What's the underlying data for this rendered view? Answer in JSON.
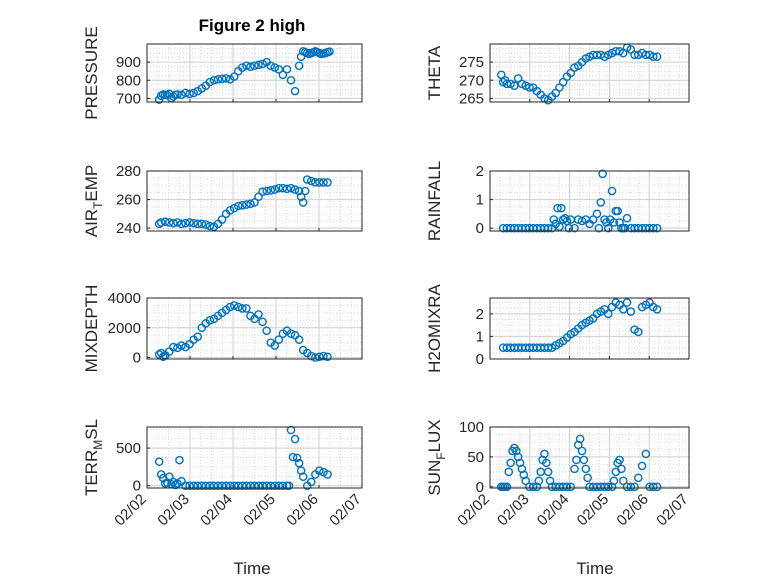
{
  "figure": {
    "title": "Figure 2 high",
    "xlabel": "Time",
    "marker_color": "#0072BD",
    "grid_color": "#d9d9d9",
    "axis_color": "#262626"
  },
  "chart_data": [
    {
      "type": "scatter",
      "id": "pressure",
      "ylabel": "PRESSURE",
      "ylim": [
        680,
        1000
      ],
      "yticks": [
        700,
        800,
        900
      ],
      "ytick_labels": [
        "700",
        "800",
        "900"
      ],
      "xlim": [
        0,
        5
      ],
      "xticks": [
        0,
        1,
        2,
        3,
        4,
        5
      ],
      "xtick_labels": [
        "02/02",
        "02/03",
        "02/04",
        "02/05",
        "02/06",
        "02/07"
      ],
      "show_xtick_labels": false,
      "x": [
        0.05,
        0.1,
        0.15,
        0.2,
        0.25,
        0.3,
        0.35,
        0.4,
        0.45,
        0.5,
        0.6,
        0.7,
        0.8,
        0.9,
        1.0,
        1.1,
        1.2,
        1.3,
        1.4,
        1.5,
        1.6,
        1.7,
        1.8,
        1.9,
        2.0,
        2.1,
        2.2,
        2.3,
        2.4,
        2.5,
        2.6,
        2.7,
        2.8,
        2.9,
        3.0,
        3.1,
        3.2,
        3.3,
        3.4,
        3.5,
        3.55,
        3.6,
        3.65,
        3.7,
        3.75,
        3.8,
        3.85,
        3.9,
        3.95,
        4.0,
        4.05,
        4.1,
        4.15,
        4.2,
        4.25
      ],
      "y": [
        693,
        715,
        722,
        720,
        718,
        725,
        700,
        710,
        720,
        722,
        720,
        730,
        725,
        730,
        740,
        755,
        770,
        790,
        800,
        805,
        808,
        810,
        805,
        820,
        850,
        870,
        880,
        875,
        880,
        885,
        890,
        900,
        880,
        870,
        860,
        830,
        860,
        800,
        740,
        880,
        930,
        960,
        955,
        950,
        945,
        950,
        955,
        960,
        955,
        950,
        945,
        948,
        950,
        955,
        958
      ]
    },
    {
      "type": "scatter",
      "id": "theta",
      "ylabel": "THETA",
      "ylim": [
        264,
        280
      ],
      "yticks": [
        265,
        270,
        275
      ],
      "ytick_labels": [
        "265",
        "270",
        "275"
      ],
      "xlim": [
        0,
        5
      ],
      "xticks": [
        0,
        1,
        2,
        3,
        4,
        5
      ],
      "xtick_labels": [
        "02/02",
        "02/03",
        "02/04",
        "02/05",
        "02/06",
        "02/07"
      ],
      "show_xtick_labels": false,
      "x": [
        0.05,
        0.1,
        0.15,
        0.2,
        0.3,
        0.4,
        0.5,
        0.6,
        0.7,
        0.8,
        0.9,
        1.0,
        1.1,
        1.2,
        1.3,
        1.4,
        1.5,
        1.6,
        1.7,
        1.8,
        1.9,
        2.0,
        2.1,
        2.2,
        2.3,
        2.4,
        2.5,
        2.6,
        2.7,
        2.8,
        2.9,
        3.0,
        3.1,
        3.2,
        3.3,
        3.4,
        3.5,
        3.6,
        3.7,
        3.8,
        3.9,
        4.0,
        4.1,
        4.2
      ],
      "y": [
        271.5,
        269.5,
        270,
        269,
        269,
        268.5,
        270.5,
        269,
        268.5,
        268,
        268,
        267,
        266,
        265,
        264.5,
        265.5,
        266.5,
        268,
        269.5,
        271,
        272,
        273.5,
        274,
        275,
        276,
        276.5,
        277,
        277,
        277,
        276.5,
        277,
        277.5,
        278,
        278,
        277.5,
        279,
        278.5,
        277,
        277,
        277.5,
        277,
        277,
        276.5,
        276.5
      ]
    },
    {
      "type": "scatter",
      "id": "air_temp",
      "ylabel": "AIR_TEMP",
      "ylabel_main": "AIR",
      "ylabel_sub": "T",
      "ylabel_rest": "EMP",
      "ylim": [
        238,
        280
      ],
      "yticks": [
        240,
        260,
        280
      ],
      "ytick_labels": [
        "240",
        "260",
        "280"
      ],
      "xlim": [
        0,
        5
      ],
      "xticks": [
        0,
        1,
        2,
        3,
        4,
        5
      ],
      "xtick_labels": [
        "02/02",
        "02/03",
        "02/04",
        "02/05",
        "02/06",
        "02/07"
      ],
      "show_xtick_labels": false,
      "x": [
        0.05,
        0.1,
        0.2,
        0.3,
        0.4,
        0.5,
        0.6,
        0.7,
        0.8,
        0.9,
        1.0,
        1.1,
        1.2,
        1.3,
        1.4,
        1.5,
        1.6,
        1.7,
        1.8,
        1.9,
        2.0,
        2.1,
        2.2,
        2.3,
        2.4,
        2.5,
        2.6,
        2.7,
        2.8,
        2.9,
        3.0,
        3.1,
        3.2,
        3.3,
        3.4,
        3.5,
        3.55,
        3.6,
        3.65,
        3.7,
        3.8,
        3.9,
        4.0,
        4.1,
        4.2
      ],
      "y": [
        243,
        244,
        244.5,
        244,
        243.5,
        244,
        243,
        243.5,
        244,
        243.5,
        243,
        243,
        242.5,
        241.5,
        241,
        243,
        246,
        250,
        252.5,
        254,
        255.5,
        256,
        256.5,
        257,
        258,
        262,
        265.5,
        266,
        266.5,
        267,
        268,
        268,
        267.5,
        268,
        267,
        266,
        262,
        258,
        266,
        274,
        273,
        272,
        272,
        272,
        272
      ]
    },
    {
      "type": "scatter",
      "id": "rainfall",
      "ylabel": "RAINFALL",
      "ylim": [
        -0.1,
        2
      ],
      "yticks": [
        0,
        1,
        2
      ],
      "ytick_labels": [
        "0",
        "1",
        "2"
      ],
      "xlim": [
        0,
        5
      ],
      "xticks": [
        0,
        1,
        2,
        3,
        4,
        5
      ],
      "xtick_labels": [
        "02/02",
        "02/03",
        "02/04",
        "02/05",
        "02/06",
        "02/07"
      ],
      "show_xtick_labels": false,
      "x": [
        0.1,
        0.2,
        0.3,
        0.4,
        0.5,
        0.6,
        0.7,
        0.8,
        0.9,
        1.0,
        1.1,
        1.2,
        1.3,
        1.4,
        1.45,
        1.5,
        1.55,
        1.6,
        1.65,
        1.7,
        1.75,
        1.8,
        1.85,
        1.9,
        2.0,
        2.1,
        2.2,
        2.3,
        2.4,
        2.5,
        2.6,
        2.65,
        2.7,
        2.75,
        2.8,
        2.85,
        2.9,
        2.95,
        3.0,
        3.05,
        3.1,
        3.15,
        3.2,
        3.25,
        3.3,
        3.35,
        3.4,
        3.5,
        3.6,
        3.7,
        3.8,
        3.9,
        4.0,
        4.1,
        4.2
      ],
      "y": [
        0,
        0,
        0,
        0,
        0,
        0,
        0,
        0,
        0,
        0,
        0,
        0,
        0,
        0,
        0.3,
        0.15,
        0.7,
        0.05,
        0.7,
        0.3,
        0.35,
        0.25,
        0,
        0.3,
        0,
        0.3,
        0.25,
        0.3,
        0.15,
        0.3,
        0.5,
        0,
        0.9,
        1.9,
        0.3,
        0.2,
        0,
        0.3,
        1.3,
        0.2,
        0.6,
        0.6,
        0.2,
        0,
        0,
        0,
        0.35,
        0,
        0,
        0,
        0,
        0,
        0,
        0,
        0
      ]
    },
    {
      "type": "scatter",
      "id": "mixdepth",
      "ylabel": "MIXDEPTH",
      "ylim": [
        -100,
        4000
      ],
      "yticks": [
        0,
        2000,
        4000
      ],
      "ytick_labels": [
        "0",
        "2000",
        "4000"
      ],
      "xlim": [
        0,
        5
      ],
      "xticks": [
        0,
        1,
        2,
        3,
        4,
        5
      ],
      "xtick_labels": [
        "02/02",
        "02/03",
        "02/04",
        "02/05",
        "02/06",
        "02/07"
      ],
      "show_xtick_labels": false,
      "x": [
        0.05,
        0.1,
        0.15,
        0.2,
        0.3,
        0.4,
        0.5,
        0.6,
        0.7,
        0.8,
        0.9,
        1.0,
        1.1,
        1.2,
        1.3,
        1.4,
        1.5,
        1.6,
        1.7,
        1.8,
        1.9,
        2.0,
        2.1,
        2.2,
        2.3,
        2.4,
        2.5,
        2.6,
        2.7,
        2.8,
        2.9,
        3.0,
        3.1,
        3.2,
        3.3,
        3.4,
        3.5,
        3.6,
        3.7,
        3.8,
        3.9,
        4.0,
        4.1,
        4.2
      ],
      "y": [
        200,
        300,
        50,
        150,
        400,
        700,
        650,
        800,
        700,
        900,
        1200,
        1400,
        2000,
        2300,
        2500,
        2600,
        2800,
        3000,
        3200,
        3400,
        3500,
        3400,
        3300,
        3300,
        2800,
        2600,
        2900,
        2400,
        1800,
        1000,
        800,
        1200,
        1600,
        1800,
        1600,
        1500,
        1200,
        500,
        300,
        100,
        0,
        50,
        100,
        50
      ]
    },
    {
      "type": "scatter",
      "id": "h2omixra",
      "ylabel": "H2OMIXRA",
      "ylim": [
        0,
        2.7
      ],
      "yticks": [
        0,
        1,
        2
      ],
      "ytick_labels": [
        "0",
        "1",
        "2"
      ],
      "xlim": [
        0,
        5
      ],
      "xticks": [
        0,
        1,
        2,
        3,
        4,
        5
      ],
      "xtick_labels": [
        "02/02",
        "02/03",
        "02/04",
        "02/05",
        "02/06",
        "02/07"
      ],
      "show_xtick_labels": false,
      "x": [
        0.1,
        0.2,
        0.3,
        0.4,
        0.5,
        0.6,
        0.7,
        0.8,
        0.9,
        1.0,
        1.1,
        1.2,
        1.3,
        1.4,
        1.5,
        1.6,
        1.7,
        1.8,
        1.9,
        2.0,
        2.1,
        2.2,
        2.3,
        2.4,
        2.5,
        2.6,
        2.7,
        2.8,
        2.9,
        3.0,
        3.1,
        3.2,
        3.3,
        3.4,
        3.5,
        3.6,
        3.7,
        3.8,
        3.9,
        4.0,
        4.1,
        4.2
      ],
      "y": [
        0.5,
        0.5,
        0.5,
        0.5,
        0.5,
        0.5,
        0.5,
        0.5,
        0.5,
        0.5,
        0.5,
        0.5,
        0.5,
        0.5,
        0.6,
        0.7,
        0.8,
        0.95,
        1.1,
        1.2,
        1.35,
        1.5,
        1.6,
        1.7,
        1.8,
        2.0,
        2.1,
        2.2,
        2.0,
        2.3,
        2.5,
        2.4,
        2.2,
        2.5,
        2.1,
        1.3,
        1.2,
        2.3,
        2.4,
        2.5,
        2.3,
        2.2
      ]
    },
    {
      "type": "scatter",
      "id": "terr_msl",
      "ylabel": "TERR_MSL",
      "ylabel_main": "TERR",
      "ylabel_sub": "M",
      "ylabel_rest": "SL",
      "ylim": [
        -30,
        780
      ],
      "yticks": [
        0,
        500
      ],
      "ytick_labels": [
        "0",
        "500"
      ],
      "xlim": [
        0,
        5
      ],
      "xticks": [
        0,
        1,
        2,
        3,
        4,
        5
      ],
      "xtick_labels": [
        "02/02",
        "02/03",
        "02/04",
        "02/05",
        "02/06",
        "02/07"
      ],
      "show_xtick_labels": true,
      "x": [
        0.05,
        0.1,
        0.15,
        0.2,
        0.25,
        0.3,
        0.35,
        0.4,
        0.45,
        0.5,
        0.55,
        0.6,
        0.7,
        0.8,
        0.9,
        1.0,
        1.1,
        1.2,
        1.3,
        1.4,
        1.5,
        1.6,
        1.7,
        1.8,
        1.9,
        2.0,
        2.1,
        2.2,
        2.3,
        2.4,
        2.5,
        2.6,
        2.7,
        2.8,
        2.9,
        3.0,
        3.1,
        3.2,
        3.25,
        3.3,
        3.35,
        3.4,
        3.45,
        3.5,
        3.55,
        3.6,
        3.7,
        3.8,
        3.9,
        4.0,
        4.1,
        4.2
      ],
      "y": [
        320,
        150,
        100,
        30,
        40,
        120,
        20,
        50,
        10,
        30,
        340,
        60,
        0,
        0,
        0,
        0,
        0,
        0,
        0,
        0,
        0,
        0,
        0,
        0,
        0,
        0,
        0,
        0,
        0,
        0,
        0,
        0,
        0,
        0,
        0,
        0,
        0,
        0,
        0,
        740,
        380,
        620,
        370,
        300,
        200,
        120,
        0,
        50,
        150,
        200,
        180,
        150
      ]
    },
    {
      "type": "scatter",
      "id": "sun_flux",
      "ylabel": "SUN_FLUX",
      "ylabel_main": "SUN",
      "ylabel_sub": "F",
      "ylabel_rest": "LUX",
      "ylim": [
        -2,
        100
      ],
      "yticks": [
        0,
        50,
        100
      ],
      "ytick_labels": [
        "0",
        "50",
        "100"
      ],
      "xlim": [
        0,
        5
      ],
      "xticks": [
        0,
        1,
        2,
        3,
        4,
        5
      ],
      "xtick_labels": [
        "02/02",
        "02/03",
        "02/04",
        "02/05",
        "02/06",
        "02/07"
      ],
      "show_xtick_labels": true,
      "x": [
        0.05,
        0.1,
        0.15,
        0.2,
        0.25,
        0.3,
        0.35,
        0.4,
        0.45,
        0.5,
        0.55,
        0.6,
        0.65,
        0.7,
        0.8,
        0.9,
        1.0,
        1.05,
        1.1,
        1.15,
        1.2,
        1.25,
        1.3,
        1.35,
        1.4,
        1.5,
        1.6,
        1.7,
        1.8,
        1.9,
        2.0,
        2.05,
        2.1,
        2.15,
        2.2,
        2.25,
        2.3,
        2.35,
        2.4,
        2.5,
        2.6,
        2.7,
        2.8,
        2.9,
        3.0,
        3.05,
        3.1,
        3.15,
        3.2,
        3.25,
        3.3,
        3.4,
        3.5,
        3.6,
        3.7,
        3.8,
        3.9,
        4.0,
        4.1,
        4.2
      ],
      "y": [
        0,
        0,
        0,
        0,
        25,
        40,
        60,
        65,
        60,
        50,
        40,
        30,
        20,
        10,
        0,
        0,
        0,
        10,
        25,
        45,
        55,
        40,
        25,
        10,
        0,
        0,
        0,
        0,
        0,
        0,
        30,
        45,
        70,
        80,
        60,
        45,
        30,
        15,
        0,
        0,
        0,
        0,
        0,
        0,
        0,
        10,
        25,
        40,
        45,
        30,
        10,
        0,
        0,
        0,
        15,
        35,
        55,
        0,
        0,
        0
      ]
    }
  ]
}
